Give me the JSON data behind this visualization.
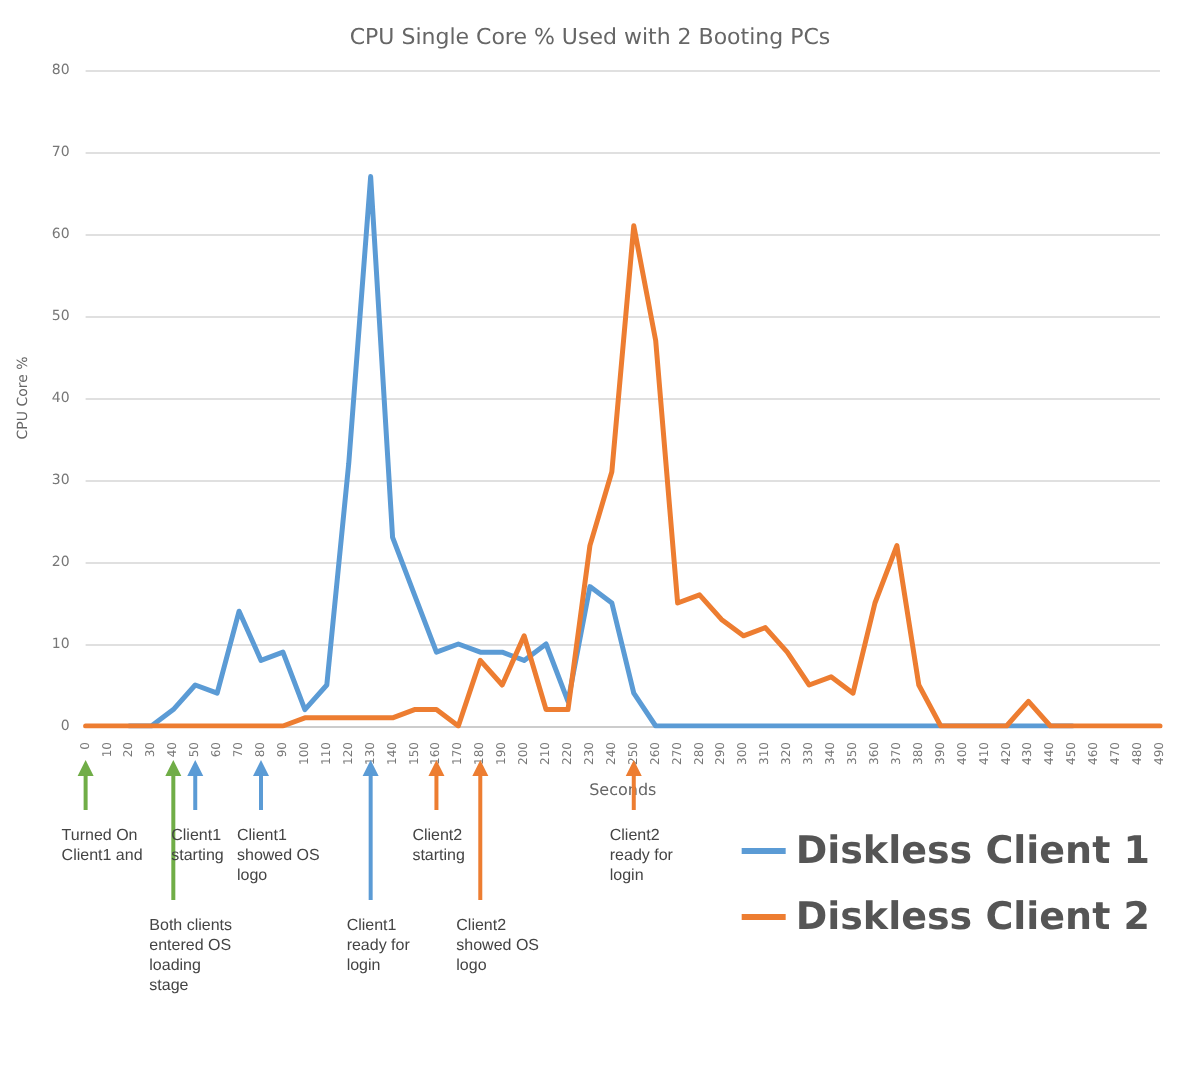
{
  "chart_data": {
    "type": "line",
    "title": "CPU Single Core % Used with 2 Booting PCs",
    "xlabel": "Seconds",
    "ylabel": "CPU Core %",
    "categories": [
      "0",
      "10",
      "20",
      "30",
      "40",
      "50",
      "60",
      "70",
      "80",
      "90",
      "100",
      "110",
      "120",
      "130",
      "140",
      "150",
      "160",
      "170",
      "180",
      "190",
      "200",
      "210",
      "220",
      "230",
      "240",
      "250",
      "260",
      "270",
      "280",
      "290",
      "300",
      "310",
      "320",
      "330",
      "340",
      "350",
      "360",
      "370",
      "380",
      "390",
      "400",
      "410",
      "420",
      "430",
      "440",
      "450",
      "460",
      "470",
      "480",
      "490"
    ],
    "series": [
      {
        "name": "Diskless Client 1",
        "color": "#5b9bd5",
        "values": [
          null,
          null,
          0,
          0,
          2,
          5,
          4,
          14,
          8,
          9,
          2,
          5,
          32,
          67,
          23,
          16,
          9,
          10,
          9,
          9,
          8,
          10,
          3,
          17,
          15,
          4,
          0,
          0,
          0,
          0,
          0,
          0,
          0,
          0,
          0,
          0,
          0,
          0,
          0,
          0,
          0,
          0,
          0,
          0,
          0,
          0,
          null,
          null,
          null,
          null
        ]
      },
      {
        "name": "Diskless Client 2",
        "color": "#ed7d31",
        "values": [
          0,
          0,
          0,
          0,
          0,
          0,
          0,
          0,
          0,
          0,
          1,
          1,
          1,
          1,
          1,
          2,
          2,
          0,
          8,
          5,
          11,
          2,
          2,
          22,
          31,
          61,
          47,
          15,
          16,
          13,
          11,
          12,
          9,
          5,
          6,
          4,
          15,
          22,
          5,
          0,
          0,
          0,
          0,
          3,
          0,
          0,
          0,
          0,
          0,
          0
        ]
      }
    ],
    "ylim": [
      0,
      80
    ],
    "yticks": [
      0,
      10,
      20,
      30,
      40,
      50,
      60,
      70,
      80
    ],
    "grid": "y",
    "legend": "bottom right",
    "marker": "none",
    "line_style": "solid",
    "annotations": [
      "Turned On Client1 and",
      "Both clients entered OS loading stage",
      "Client1 starting",
      "Client1 showed OS logo",
      "Client1 ready for login",
      "Client2 starting",
      "Client2 showed OS logo",
      "Client2 ready for login"
    ]
  }
}
